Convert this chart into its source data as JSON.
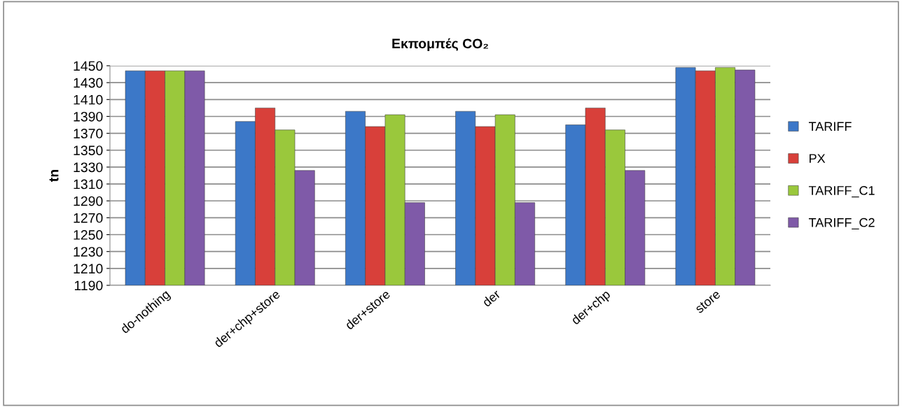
{
  "chart_data": {
    "type": "bar",
    "title": "Εκπομπές CO₂",
    "ylabel": "tn",
    "categories": [
      "do-nothing",
      "der+chp+store",
      "der+store",
      "der",
      "der+chp",
      "store"
    ],
    "series": [
      {
        "name": "TARIFF",
        "color": "#3c78c8",
        "values": [
          1444,
          1384,
          1396,
          1396,
          1380,
          1448
        ]
      },
      {
        "name": "PX",
        "color": "#d8403a",
        "values": [
          1444,
          1400,
          1378,
          1378,
          1400,
          1444
        ]
      },
      {
        "name": "TARIFF_C1",
        "color": "#9ac83c",
        "values": [
          1444,
          1374,
          1392,
          1392,
          1374,
          1448
        ]
      },
      {
        "name": "TARIFF_C2",
        "color": "#7f5aa8",
        "values": [
          1444,
          1326,
          1288,
          1288,
          1326,
          1445
        ]
      }
    ],
    "ylim": [
      1190,
      1450
    ],
    "yticks": [
      1190,
      1210,
      1230,
      1250,
      1270,
      1290,
      1310,
      1330,
      1350,
      1370,
      1390,
      1410,
      1430,
      1450
    ],
    "grid": "y",
    "legend": "right"
  }
}
